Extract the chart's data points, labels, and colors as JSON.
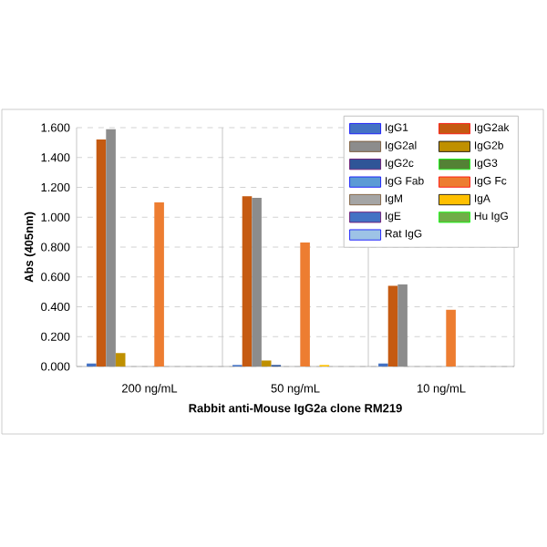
{
  "chart_data": {
    "type": "bar",
    "xlabel": "Rabbit anti-Mouse IgG2a clone RM219",
    "ylabel": "Abs (405nm)",
    "categories": [
      "200 ng/mL",
      "50 ng/mL",
      "10 ng/mL"
    ],
    "ylim": [
      0,
      1.6
    ],
    "yticks": [
      {
        "value": 0,
        "label": "0.000"
      },
      {
        "value": 0.2,
        "label": "0.200"
      },
      {
        "value": 0.4,
        "label": "0.400"
      },
      {
        "value": 0.6,
        "label": "0.600"
      },
      {
        "value": 0.8,
        "label": "0.800"
      },
      {
        "value": 1.0,
        "label": "1.000"
      },
      {
        "value": 1.2,
        "label": "1.200"
      },
      {
        "value": 1.4,
        "label": "1.400"
      },
      {
        "value": 1.6,
        "label": "1.600"
      }
    ],
    "grid": "y",
    "legend": "top right",
    "series": [
      {
        "name": "IgG1",
        "color": "#4472c4",
        "values": [
          0.02,
          0.01,
          0.02
        ]
      },
      {
        "name": "IgG2ak",
        "color": "#c55a11",
        "values": [
          1.52,
          1.14,
          0.54
        ]
      },
      {
        "name": "IgG2al",
        "color": "#8c8c8c",
        "values": [
          1.59,
          1.13,
          0.55
        ]
      },
      {
        "name": "IgG2b",
        "color": "#bf9000",
        "values": [
          0.09,
          0.04,
          0
        ]
      },
      {
        "name": "IgG2c",
        "color": "#2f5597",
        "values": [
          0,
          0.01,
          0
        ]
      },
      {
        "name": "IgG3",
        "color": "#548235",
        "values": [
          0,
          0,
          0
        ]
      },
      {
        "name": "IgG Fab",
        "color": "#5b9bd5",
        "values": [
          0,
          0,
          0
        ]
      },
      {
        "name": "IgG Fc",
        "color": "#ed7d31",
        "values": [
          1.1,
          0.83,
          0.38
        ]
      },
      {
        "name": "IgM",
        "color": "#a5a5a5",
        "values": [
          0,
          0,
          0
        ]
      },
      {
        "name": "IgA",
        "color": "#ffc000",
        "values": [
          0,
          0.01,
          0
        ]
      },
      {
        "name": "IgE",
        "color": "#4472c4",
        "values": [
          0,
          0,
          0
        ]
      },
      {
        "name": "Hu IgG",
        "color": "#70ad47",
        "values": [
          0,
          0,
          0
        ]
      },
      {
        "name": "Rat IgG",
        "color": "#9dc3e6",
        "values": [
          0,
          0,
          0
        ]
      }
    ]
  }
}
